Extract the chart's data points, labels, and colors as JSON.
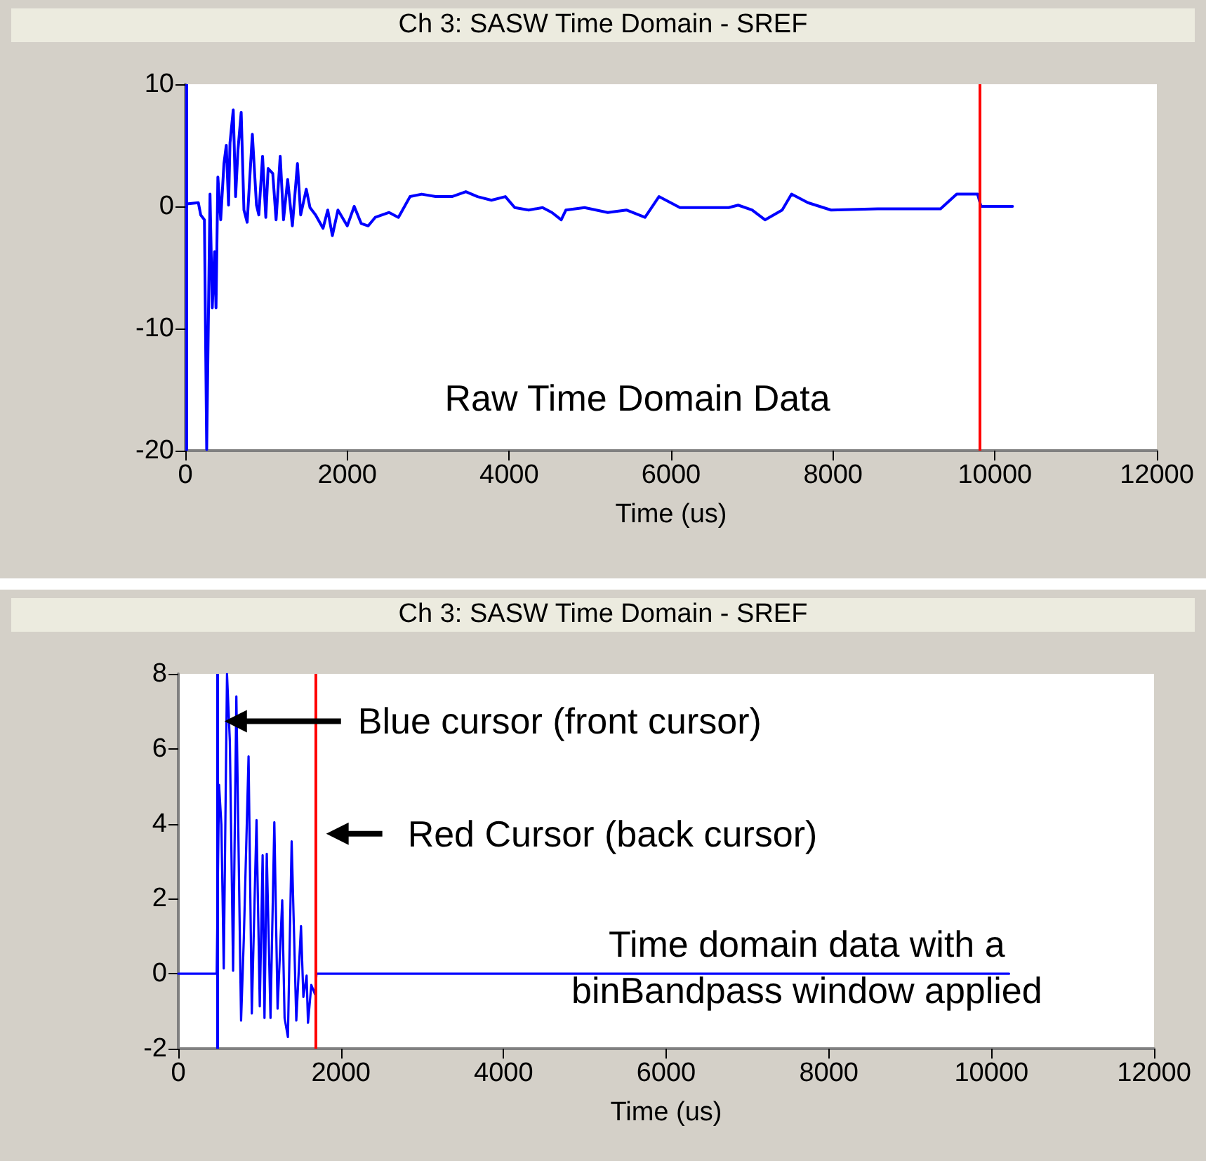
{
  "chart_data": [
    {
      "type": "line",
      "title": "Ch 3: SASW Time Domain - SREF",
      "xlabel": "Time (us)",
      "series": [
        {
          "color": "#0000ff",
          "x": [
            17,
            161,
            190,
            236,
            264,
            305,
            333,
            362,
            379,
            402,
            437,
            477,
            506,
            534,
            552,
            592,
            621,
            650,
            690,
            724,
            764,
            828,
            879,
            908,
            954,
            994,
            1023,
            1080,
            1121,
            1172,
            1213,
            1264,
            1322,
            1385,
            1425,
            1494,
            1540,
            1609,
            1701,
            1759,
            1816,
            1885,
            2000,
            2086,
            2172,
            2259,
            2345,
            2517,
            2632,
            2776,
            2919,
            3092,
            3293,
            3465,
            3609,
            3781,
            3953,
            4069,
            4241,
            4413,
            4528,
            4643,
            4701,
            4931,
            5218,
            5448,
            5678,
            5850,
            6109,
            6712,
            6828,
            7000,
            7160,
            7372,
            7488,
            7690,
            7976,
            8552,
            9328,
            9528,
            9786,
            9828,
            10217
          ],
          "values": [
            0.2,
            0.3,
            -0.7,
            -1.1,
            -19.9,
            1.0,
            -8.3,
            -3.7,
            -8.3,
            2.4,
            -1.1,
            3.5,
            5.0,
            0.1,
            5.2,
            7.9,
            0.8,
            4.6,
            7.7,
            -0.3,
            -1.3,
            5.9,
            0.1,
            -0.7,
            4.1,
            -0.9,
            3.1,
            2.7,
            -1.1,
            4.1,
            -1.1,
            2.2,
            -1.6,
            3.5,
            -0.7,
            1.4,
            -0.1,
            -0.7,
            -1.8,
            -0.3,
            -2.4,
            -0.3,
            -1.6,
            0,
            -1.4,
            -1.6,
            -0.9,
            -0.5,
            -0.9,
            0.8,
            1.0,
            0.8,
            0.8,
            1.2,
            0.8,
            0.5,
            0.8,
            -0.1,
            -0.3,
            -0.1,
            -0.5,
            -1.1,
            -0.3,
            -0.1,
            -0.5,
            -0.3,
            -0.9,
            0.8,
            -0.1,
            -0.1,
            0.1,
            -0.3,
            -1.1,
            -0.3,
            1.0,
            0.3,
            -0.3,
            -0.2,
            -0.2,
            1.0,
            1.0,
            0,
            0
          ]
        }
      ],
      "xlim": [
        0,
        12000
      ],
      "xticks": [
        0,
        2000,
        4000,
        6000,
        8000,
        10000,
        12000
      ],
      "ylim": [
        -20,
        10
      ],
      "yticks": [
        -20,
        -10,
        0,
        10
      ],
      "ref_lines": [
        {
          "axis": "x",
          "value": 20,
          "color": "#0000ff"
        },
        {
          "axis": "x",
          "value": 9816,
          "color": "#ff0000"
        }
      ],
      "annotations": [
        "Raw Time Domain Data"
      ],
      "grid": false
    },
    {
      "type": "line",
      "title": "Ch 3: SASW Time Domain - SREF",
      "xlabel": "Time (us)",
      "series": [
        {
          "color": "#0000ff",
          "x": [
            0,
            472,
            501,
            530,
            559,
            599,
            634,
            674,
            714,
            772,
            806,
            864,
            904,
            962,
            1002,
            1037,
            1060,
            1088,
            1134,
            1181,
            1221,
            1278,
            1307,
            1348,
            1394,
            1451,
            1509,
            1538,
            1578,
            1595,
            1636,
            1682,
            1699,
            10217
          ],
          "values": [
            0,
            0,
            5.04,
            3.97,
            0.14,
            8,
            6.2,
            0.08,
            7.4,
            -1.25,
            0.96,
            5.8,
            -1.06,
            4.1,
            -0.87,
            3.16,
            -1.18,
            3.2,
            -1.18,
            4.04,
            -0.93,
            1.96,
            -1.18,
            -1.69,
            3.53,
            -1.25,
            1.27,
            -0.62,
            -0.05,
            -1.31,
            -0.3,
            -0.55,
            0,
            0
          ]
        }
      ],
      "xlim": [
        0,
        12000
      ],
      "xticks": [
        0,
        2000,
        4000,
        6000,
        8000,
        10000,
        12000
      ],
      "ylim": [
        -2,
        8
      ],
      "yticks": [
        -2,
        0,
        2,
        4,
        6,
        8
      ],
      "ref_lines": [
        {
          "axis": "x",
          "value": 472,
          "color": "#0000ff"
        },
        {
          "axis": "x",
          "value": 1682,
          "color": "#ff0000"
        }
      ],
      "annotations": [
        "Blue cursor (front cursor)",
        "Red Cursor (back cursor)",
        "Time domain data with a binBandpass window applied"
      ],
      "grid": false
    }
  ]
}
